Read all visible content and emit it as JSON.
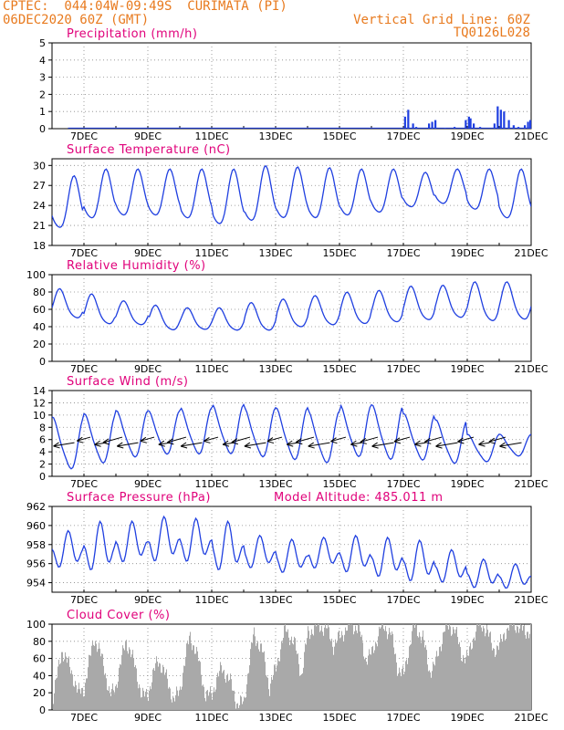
{
  "header": {
    "line1": "CPTEC:  044:04W-09:49S  CURIMATA (PI)",
    "line2": "06DEC2020 60Z (GMT)",
    "grid_note": "Vertical Grid Line: 60Z",
    "code": "TQ0126L028"
  },
  "colors": {
    "header": "#e87a1e",
    "title": "#e0007a",
    "series": "#1f3fe0",
    "cloud": "#a9a9a9",
    "axis": "#000000"
  },
  "chart_data": [
    {
      "id": "precip",
      "type": "bar",
      "title": "Precipitation (mm/h)",
      "x_tick_labels": [
        "7DEC",
        "9DEC",
        "11DEC",
        "13DEC",
        "15DEC",
        "17DEC",
        "19DEC",
        "21DEC"
      ],
      "ylim": [
        0,
        5
      ],
      "y_ticks": [
        "0",
        "1",
        "2",
        "3",
        "4",
        "5"
      ],
      "x_unit": "day offset from 06DEC 00Z",
      "xlim": [
        0,
        15
      ],
      "bars": [
        [
          11.05,
          0.7
        ],
        [
          11.15,
          1.1
        ],
        [
          11.3,
          0.3
        ],
        [
          11.4,
          0.1
        ],
        [
          11.8,
          0.3
        ],
        [
          11.9,
          0.4
        ],
        [
          12.0,
          0.5
        ],
        [
          12.3,
          0.05
        ],
        [
          12.6,
          0.1
        ],
        [
          12.95,
          0.5
        ],
        [
          13.05,
          0.7
        ],
        [
          13.1,
          0.6
        ],
        [
          13.2,
          0.3
        ],
        [
          13.4,
          0.1
        ],
        [
          13.85,
          0.3
        ],
        [
          13.95,
          1.3
        ],
        [
          14.05,
          1.1
        ],
        [
          14.15,
          1.0
        ],
        [
          14.3,
          0.5
        ],
        [
          14.45,
          0.2
        ],
        [
          14.6,
          0.1
        ],
        [
          14.8,
          0.2
        ],
        [
          14.9,
          0.4
        ],
        [
          14.97,
          0.5
        ]
      ]
    },
    {
      "id": "temp",
      "type": "line",
      "title": "Surface Temperature (nC)",
      "x_tick_labels": [
        "7DEC",
        "9DEC",
        "11DEC",
        "13DEC",
        "15DEC",
        "17DEC",
        "19DEC",
        "21DEC"
      ],
      "ylim": [
        18,
        31
      ],
      "y_ticks": [
        "18",
        "21",
        "24",
        "27",
        "30"
      ],
      "days": [
        "6",
        "7",
        "8",
        "9",
        "10",
        "11",
        "12",
        "13",
        "14",
        "15",
        "16",
        "17",
        "18",
        "19",
        "20"
      ],
      "daily_max": [
        28.5,
        29.5,
        29.5,
        29.5,
        29.5,
        29.5,
        30.0,
        29.8,
        29.7,
        29.5,
        29.5,
        29.0,
        29.5,
        29.5,
        29.5
      ],
      "daily_min": [
        19.5,
        21.0,
        21.5,
        21.5,
        21.0,
        20.0,
        20.5,
        21.0,
        21.0,
        21.5,
        22.0,
        23.0,
        23.5,
        22.5,
        21.0
      ]
    },
    {
      "id": "rh",
      "type": "line",
      "title": "Relative Humidity (%)",
      "x_tick_labels": [
        "7DEC",
        "9DEC",
        "11DEC",
        "13DEC",
        "15DEC",
        "17DEC",
        "19DEC",
        "21DEC"
      ],
      "ylim": [
        0,
        100
      ],
      "y_ticks": [
        "0",
        "20",
        "40",
        "60",
        "80",
        "100"
      ],
      "days": [
        "6",
        "7",
        "8",
        "9",
        "10",
        "11",
        "12",
        "13",
        "14",
        "15",
        "16",
        "17",
        "18",
        "19",
        "20"
      ],
      "daily_max": [
        84,
        78,
        70,
        65,
        62,
        62,
        68,
        72,
        76,
        80,
        82,
        87,
        88,
        92,
        92
      ],
      "daily_min": [
        45,
        38,
        38,
        32,
        33,
        32,
        31,
        35,
        37,
        38,
        40,
        42,
        45,
        40,
        42
      ]
    },
    {
      "id": "wind",
      "type": "line",
      "title": "Surface Wind (m/s)",
      "x_tick_labels": [
        "7DEC",
        "9DEC",
        "11DEC",
        "13DEC",
        "15DEC",
        "17DEC",
        "19DEC",
        "21DEC"
      ],
      "ylim": [
        0,
        14
      ],
      "y_ticks": [
        "0",
        "2",
        "4",
        "6",
        "8",
        "10",
        "12",
        "14"
      ],
      "days": [
        "6",
        "7",
        "8",
        "9",
        "10",
        "11",
        "12",
        "13",
        "14",
        "15",
        "16",
        "17",
        "18",
        "19",
        "20"
      ],
      "daily_max": [
        10,
        10.5,
        11,
        11,
        11.5,
        12,
        11.5,
        11.5,
        11,
        12,
        12,
        10.5,
        9.5,
        7,
        7
      ],
      "daily_min": [
        0.5,
        1.5,
        2.5,
        3,
        3,
        3,
        2.5,
        2,
        1.5,
        2.5,
        2,
        2,
        1.5,
        2,
        3
      ],
      "vector_direction": "from east-northeast toward west-southwest"
    },
    {
      "id": "pres",
      "type": "line",
      "title": "Surface Pressure (hPa)",
      "annotation": "Model Altitude: 485.011 m",
      "x_tick_labels": [
        "7DEC",
        "9DEC",
        "11DEC",
        "13DEC",
        "15DEC",
        "17DEC",
        "19DEC",
        "21DEC"
      ],
      "ylim": [
        953,
        962
      ],
      "y_ticks": [
        "954",
        "956",
        "958",
        "960",
        "962"
      ],
      "days": [
        "6",
        "7",
        "8",
        "9",
        "10",
        "11",
        "12",
        "13",
        "14",
        "15",
        "16",
        "17",
        "18",
        "19",
        "20"
      ],
      "daily_max": [
        959.5,
        960.5,
        960.5,
        961.0,
        960.8,
        960.5,
        959.0,
        958.6,
        958.8,
        959.0,
        958.8,
        958.5,
        957.5,
        956.5,
        956.0
      ],
      "daily_min": [
        955.0,
        954.5,
        955.5,
        955.5,
        955.5,
        954.5,
        955.0,
        954.5,
        955.0,
        954.5,
        954.0,
        953.5,
        953.5,
        953.0,
        953.0
      ]
    },
    {
      "id": "cloud",
      "type": "area",
      "title": "Cloud Cover (%)",
      "x_tick_labels": [
        "7DEC",
        "9DEC",
        "11DEC",
        "13DEC",
        "15DEC",
        "17DEC",
        "19DEC",
        "21DEC"
      ],
      "ylim": [
        0,
        100
      ],
      "y_ticks": [
        "0",
        "20",
        "40",
        "60",
        "80",
        "100"
      ],
      "x": [
        0,
        0.3,
        0.6,
        0.8,
        1.0,
        1.3,
        1.6,
        1.8,
        2.0,
        2.3,
        2.6,
        2.8,
        3.0,
        3.3,
        3.6,
        3.8,
        4.0,
        4.3,
        4.6,
        4.8,
        5.0,
        5.3,
        5.6,
        5.8,
        6.0,
        6.3,
        6.6,
        6.8,
        7.0,
        7.3,
        7.6,
        7.8,
        8.0,
        8.3,
        8.6,
        8.8,
        9.0,
        9.3,
        9.6,
        9.8,
        10.0,
        10.3,
        10.6,
        10.8,
        11.0,
        11.3,
        11.6,
        11.8,
        12.0,
        12.3,
        12.6,
        12.8,
        13.0,
        13.3,
        13.6,
        13.8,
        14.0,
        14.3,
        14.6,
        14.8,
        15.0
      ],
      "values": [
        10,
        70,
        45,
        20,
        25,
        85,
        55,
        15,
        30,
        82,
        50,
        15,
        20,
        60,
        35,
        10,
        25,
        88,
        55,
        15,
        20,
        50,
        30,
        5,
        10,
        90,
        65,
        25,
        50,
        95,
        75,
        40,
        90,
        98,
        95,
        75,
        85,
        100,
        95,
        60,
        65,
        99,
        90,
        50,
        40,
        98,
        85,
        45,
        55,
        97,
        95,
        65,
        60,
        100,
        95,
        70,
        75,
        100,
        98,
        90,
        95
      ]
    }
  ]
}
